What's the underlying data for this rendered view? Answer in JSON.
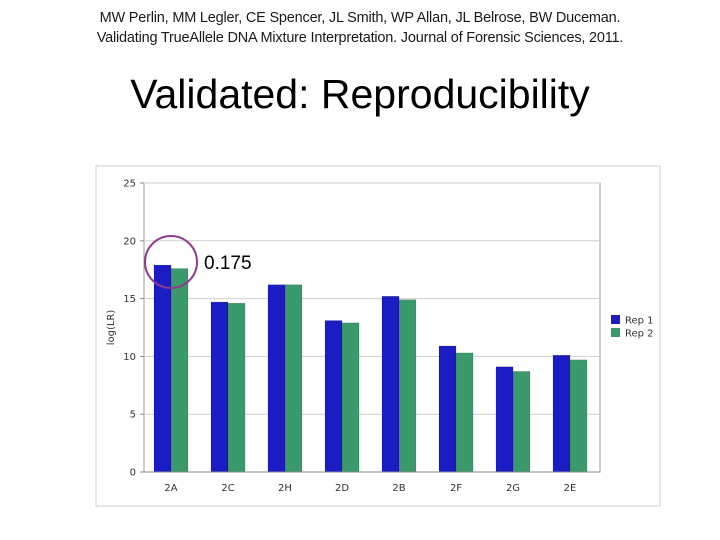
{
  "citation": {
    "line1": "MW Perlin, MM Legler, CE Spencer, JL Smith, WP Allan, JL Belrose, BW Duceman.",
    "line2": "Validating TrueAllele DNA Mixture Interpretation. Journal of Forensic Sciences, 2011."
  },
  "title": "Validated: Reproducibility",
  "chart_data": {
    "type": "bar",
    "categories": [
      "2A",
      "2C",
      "2H",
      "2D",
      "2B",
      "2F",
      "2G",
      "2E"
    ],
    "series": [
      {
        "name": "Rep 1",
        "color": "#1c1cc4",
        "values": [
          17.9,
          14.7,
          16.2,
          13.1,
          15.2,
          10.9,
          9.1,
          10.1
        ]
      },
      {
        "name": "Rep 2",
        "color": "#3a9a6c",
        "values": [
          17.6,
          14.6,
          16.2,
          12.9,
          14.9,
          10.3,
          8.7,
          9.7
        ]
      }
    ],
    "ylabel": "log(LR)",
    "xlabel": "",
    "ylim": [
      0,
      25
    ],
    "yticks": [
      0,
      5,
      10,
      15,
      20,
      25
    ],
    "grid": true,
    "legend": "right",
    "annotation": {
      "text": "0.175",
      "category": "2A",
      "shape": "circle",
      "color": "#8e3a8e"
    }
  }
}
